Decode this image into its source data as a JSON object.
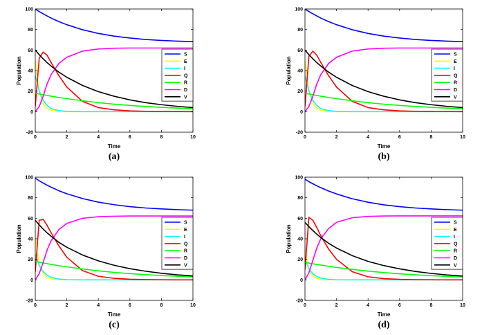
{
  "chart_data": [
    {
      "type": "line",
      "panel_label": "(a)",
      "xlabel": "Time",
      "ylabel": "Population",
      "xlim": [
        0,
        10
      ],
      "ylim": [
        -20,
        100
      ],
      "xticks": [
        0,
        2,
        4,
        6,
        8,
        10
      ],
      "yticks": [
        -20,
        0,
        20,
        40,
        60,
        80,
        100
      ],
      "legend_position": "right-middle",
      "x": [
        0,
        0.25,
        0.5,
        0.75,
        1,
        1.5,
        2,
        3,
        4,
        5,
        6,
        7,
        8,
        9,
        10
      ],
      "series": [
        {
          "name": "S",
          "color": "#0000ff",
          "values": [
            100,
            97.5,
            95.3,
            93.2,
            91.2,
            87.7,
            84.7,
            79.8,
            76.2,
            73.6,
            71.7,
            70.3,
            69.4,
            68.7,
            68.2
          ]
        },
        {
          "name": "E",
          "color": "#ffff00",
          "values": [
            50,
            20,
            8,
            3.5,
            1.5,
            0.3,
            0,
            0,
            0,
            0,
            0,
            0,
            0,
            0,
            0
          ]
        },
        {
          "name": "I",
          "color": "#00ffff",
          "values": [
            35,
            20,
            11,
            6,
            3,
            1,
            0.3,
            0,
            0,
            0,
            0,
            0,
            0,
            0,
            0
          ]
        },
        {
          "name": "Q",
          "color": "#ff0000",
          "values": [
            5,
            52,
            58,
            55,
            48,
            35,
            24,
            10,
            4,
            1.8,
            0.8,
            0.4,
            0.2,
            0.1,
            0
          ]
        },
        {
          "name": "R",
          "color": "#00ff00",
          "values": [
            18,
            17.2,
            16.5,
            15.8,
            15.1,
            13.8,
            12.7,
            10.6,
            8.8,
            7.3,
            6.1,
            5.1,
            4.2,
            3.5,
            2.9
          ]
        },
        {
          "name": "D",
          "color": "#ff00ff",
          "values": [
            0,
            5,
            15,
            27,
            36,
            47,
            53,
            59,
            61,
            61.8,
            62,
            62,
            62,
            62,
            62
          ]
        },
        {
          "name": "V",
          "color": "#000000",
          "values": [
            60,
            55.5,
            51.5,
            47.8,
            44.5,
            38.5,
            33.5,
            25.5,
            19.5,
            15,
            11.5,
            8.8,
            6.8,
            5.2,
            4
          ]
        }
      ]
    },
    {
      "type": "line",
      "panel_label": "(b)",
      "xlabel": "Time",
      "ylabel": "Population",
      "xlim": [
        0,
        10
      ],
      "ylim": [
        -20,
        100
      ],
      "xticks": [
        0,
        2,
        4,
        6,
        8,
        10
      ],
      "yticks": [
        -20,
        0,
        20,
        40,
        60,
        80,
        100
      ],
      "legend_position": "right-middle",
      "x": [
        0,
        0.25,
        0.5,
        0.75,
        1,
        1.5,
        2,
        3,
        4,
        5,
        6,
        7,
        8,
        9,
        10
      ],
      "series": [
        {
          "name": "S",
          "color": "#0000ff",
          "values": [
            100,
            97.5,
            95.3,
            93.2,
            91.2,
            87.7,
            84.7,
            79.8,
            76.2,
            73.6,
            71.7,
            70.3,
            69.4,
            68.7,
            68.2
          ]
        },
        {
          "name": "E",
          "color": "#ffff00",
          "values": [
            50,
            20,
            8,
            3.5,
            1.5,
            0.3,
            0,
            0,
            0,
            0,
            0,
            0,
            0,
            0,
            0
          ]
        },
        {
          "name": "I",
          "color": "#00ffff",
          "values": [
            35,
            20,
            11,
            6,
            3,
            1,
            0.3,
            0,
            0,
            0,
            0,
            0,
            0,
            0,
            0
          ]
        },
        {
          "name": "Q",
          "color": "#ff0000",
          "values": [
            5,
            54,
            59,
            55,
            48,
            35,
            24,
            10,
            4,
            1.8,
            0.8,
            0.4,
            0.2,
            0.1,
            0
          ]
        },
        {
          "name": "R",
          "color": "#00ff00",
          "values": [
            18,
            17.2,
            16.5,
            15.8,
            15.1,
            13.8,
            12.7,
            10.6,
            8.8,
            7.3,
            6.1,
            5.1,
            4.2,
            3.5,
            2.9
          ]
        },
        {
          "name": "D",
          "color": "#ff00ff",
          "values": [
            0,
            5,
            15,
            27,
            36,
            47,
            53,
            59,
            61,
            61.8,
            62,
            62,
            62,
            62,
            62
          ]
        },
        {
          "name": "V",
          "color": "#000000",
          "values": [
            60,
            55.5,
            51.5,
            47.8,
            44.5,
            38.5,
            33.5,
            25.5,
            19.5,
            15,
            11.5,
            8.8,
            6.8,
            5.2,
            4
          ]
        }
      ]
    },
    {
      "type": "line",
      "panel_label": "(c)",
      "xlabel": "Time",
      "ylabel": "Population",
      "xlim": [
        0,
        10
      ],
      "ylim": [
        -20,
        100
      ],
      "xticks": [
        0,
        2,
        4,
        6,
        8,
        10
      ],
      "yticks": [
        -20,
        0,
        20,
        40,
        60,
        80,
        100
      ],
      "legend_position": "right-middle",
      "x": [
        0,
        0.25,
        0.5,
        0.75,
        1,
        1.5,
        2,
        3,
        4,
        5,
        6,
        7,
        8,
        9,
        10
      ],
      "series": [
        {
          "name": "S",
          "color": "#0000ff",
          "values": [
            99,
            96.5,
            94.3,
            92.2,
            90.3,
            86.8,
            83.9,
            79.2,
            75.7,
            73.2,
            71.3,
            70,
            69.1,
            68.4,
            67.9
          ]
        },
        {
          "name": "E",
          "color": "#ffff00",
          "values": [
            40,
            15,
            6,
            2.5,
            1,
            0.2,
            0,
            0,
            0,
            0,
            0,
            0,
            0,
            0,
            0
          ]
        },
        {
          "name": "I",
          "color": "#00ffff",
          "values": [
            25,
            14,
            8,
            4.5,
            2.5,
            0.8,
            0.2,
            0,
            0,
            0,
            0,
            0,
            0,
            0,
            0
          ]
        },
        {
          "name": "Q",
          "color": "#ff0000",
          "values": [
            8,
            58,
            59,
            53,
            46,
            33,
            22,
            9,
            3.5,
            1.5,
            0.6,
            0.3,
            0.1,
            0,
            0
          ]
        },
        {
          "name": "R",
          "color": "#00ff00",
          "values": [
            18,
            17.2,
            16.5,
            15.8,
            15.1,
            13.8,
            12.7,
            10.6,
            8.8,
            7.3,
            6.1,
            5.1,
            4.2,
            3.5,
            2.9
          ]
        },
        {
          "name": "D",
          "color": "#ff00ff",
          "values": [
            0,
            6,
            17,
            29,
            38,
            49,
            55,
            60,
            61.5,
            62,
            62.2,
            62.2,
            62.2,
            62.2,
            62.2
          ]
        },
        {
          "name": "V",
          "color": "#000000",
          "values": [
            58,
            53.5,
            49.5,
            45.8,
            42.5,
            36.5,
            31.8,
            24.2,
            18.5,
            14.2,
            10.9,
            8.4,
            6.4,
            4.9,
            3.8
          ]
        }
      ]
    },
    {
      "type": "line",
      "panel_label": "(d)",
      "xlabel": "Time",
      "ylabel": "Population",
      "xlim": [
        0,
        10
      ],
      "ylim": [
        -20,
        100
      ],
      "xticks": [
        0,
        2,
        4,
        6,
        8,
        10
      ],
      "yticks": [
        -20,
        0,
        20,
        40,
        60,
        80,
        100
      ],
      "legend_position": "right-middle",
      "x": [
        0,
        0.25,
        0.5,
        0.75,
        1,
        1.5,
        2,
        3,
        4,
        5,
        6,
        7,
        8,
        9,
        10
      ],
      "series": [
        {
          "name": "S",
          "color": "#0000ff",
          "values": [
            98,
            95.7,
            93.6,
            91.6,
            89.8,
            86.5,
            83.7,
            79,
            75.6,
            73.1,
            71.3,
            70,
            69.1,
            68.4,
            67.9
          ]
        },
        {
          "name": "E",
          "color": "#ffff00",
          "values": [
            30,
            10,
            4,
            1.5,
            0.6,
            0.1,
            0,
            0,
            0,
            0,
            0,
            0,
            0,
            0,
            0
          ]
        },
        {
          "name": "I",
          "color": "#00ffff",
          "values": [
            20,
            11,
            6,
            3.3,
            1.8,
            0.5,
            0.1,
            0,
            0,
            0,
            0,
            0,
            0,
            0,
            0
          ]
        },
        {
          "name": "Q",
          "color": "#ff0000",
          "values": [
            10,
            61,
            58,
            51,
            43,
            30,
            20,
            8,
            3,
            1.2,
            0.5,
            0.2,
            0.1,
            0,
            0
          ]
        },
        {
          "name": "R",
          "color": "#00ff00",
          "values": [
            17,
            16.3,
            15.6,
            15,
            14.4,
            13.2,
            12.1,
            10.2,
            8.5,
            7.1,
            5.9,
            4.9,
            4.1,
            3.4,
            2.8
          ]
        },
        {
          "name": "D",
          "color": "#ff00ff",
          "values": [
            0,
            7,
            19,
            31,
            40,
            50,
            56,
            60.5,
            61.8,
            62.2,
            62.3,
            62.3,
            62.3,
            62.3,
            62.3
          ]
        },
        {
          "name": "V",
          "color": "#000000",
          "values": [
            56,
            51.8,
            48,
            44.5,
            41.3,
            35.6,
            31,
            23.6,
            18,
            13.9,
            10.7,
            8.2,
            6.3,
            4.8,
            3.7
          ]
        }
      ]
    }
  ]
}
